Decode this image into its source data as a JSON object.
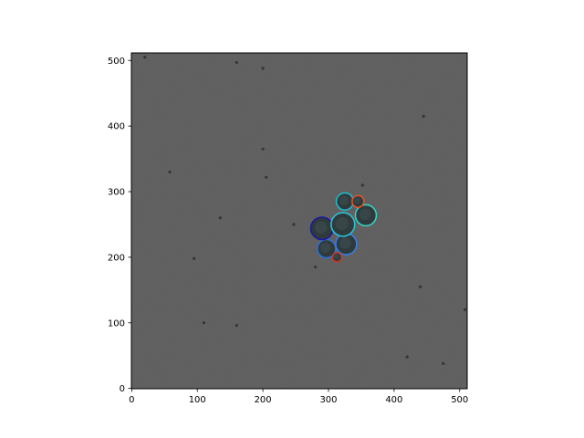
{
  "figure": {
    "x_ticks": [
      "0",
      "100",
      "200",
      "300",
      "400",
      "500"
    ],
    "y_ticks": [
      "0",
      "100",
      "200",
      "300",
      "400",
      "500"
    ],
    "x_tick_values": [
      0,
      100,
      200,
      300,
      400,
      500
    ],
    "y_tick_values": [
      0,
      100,
      200,
      300,
      400,
      500
    ],
    "x_range": [
      -0.5,
      511.5
    ],
    "y_range": [
      511.5,
      -0.5
    ]
  },
  "image": {
    "background_color": "#5d5d5d",
    "cell_fill_color": "#2e3a3c",
    "cells": [
      {
        "cx": 297,
        "cy": 213,
        "r": 14,
        "outline_color": "#2f6fd6"
      },
      {
        "cx": 327,
        "cy": 220,
        "r": 16,
        "outline_color": "#3b7be0"
      },
      {
        "cx": 313,
        "cy": 200,
        "r": 7,
        "outline_color": "#c0392b"
      },
      {
        "cx": 290,
        "cy": 244,
        "r": 17,
        "outline_color": "#1a1a9c"
      },
      {
        "cx": 322,
        "cy": 250,
        "r": 18,
        "outline_color": "#27c2d6"
      },
      {
        "cx": 357,
        "cy": 264,
        "r": 16,
        "outline_color": "#36d1c0"
      },
      {
        "cx": 325,
        "cy": 285,
        "r": 13,
        "outline_color": "#1fb8c9"
      },
      {
        "cx": 345,
        "cy": 285,
        "r": 9,
        "outline_color": "#e0552a"
      }
    ],
    "specks": [
      {
        "x": 110,
        "y": 100
      },
      {
        "x": 160,
        "y": 96
      },
      {
        "x": 95,
        "y": 198
      },
      {
        "x": 135,
        "y": 260
      },
      {
        "x": 58,
        "y": 330
      },
      {
        "x": 205,
        "y": 322
      },
      {
        "x": 247,
        "y": 250
      },
      {
        "x": 200,
        "y": 365
      },
      {
        "x": 440,
        "y": 155
      },
      {
        "x": 420,
        "y": 48
      },
      {
        "x": 475,
        "y": 38
      },
      {
        "x": 508,
        "y": 120
      },
      {
        "x": 160,
        "y": 497
      },
      {
        "x": 200,
        "y": 488
      },
      {
        "x": 20,
        "y": 505
      },
      {
        "x": 280,
        "y": 185
      },
      {
        "x": 352,
        "y": 310
      },
      {
        "x": 445,
        "y": 415
      }
    ]
  }
}
